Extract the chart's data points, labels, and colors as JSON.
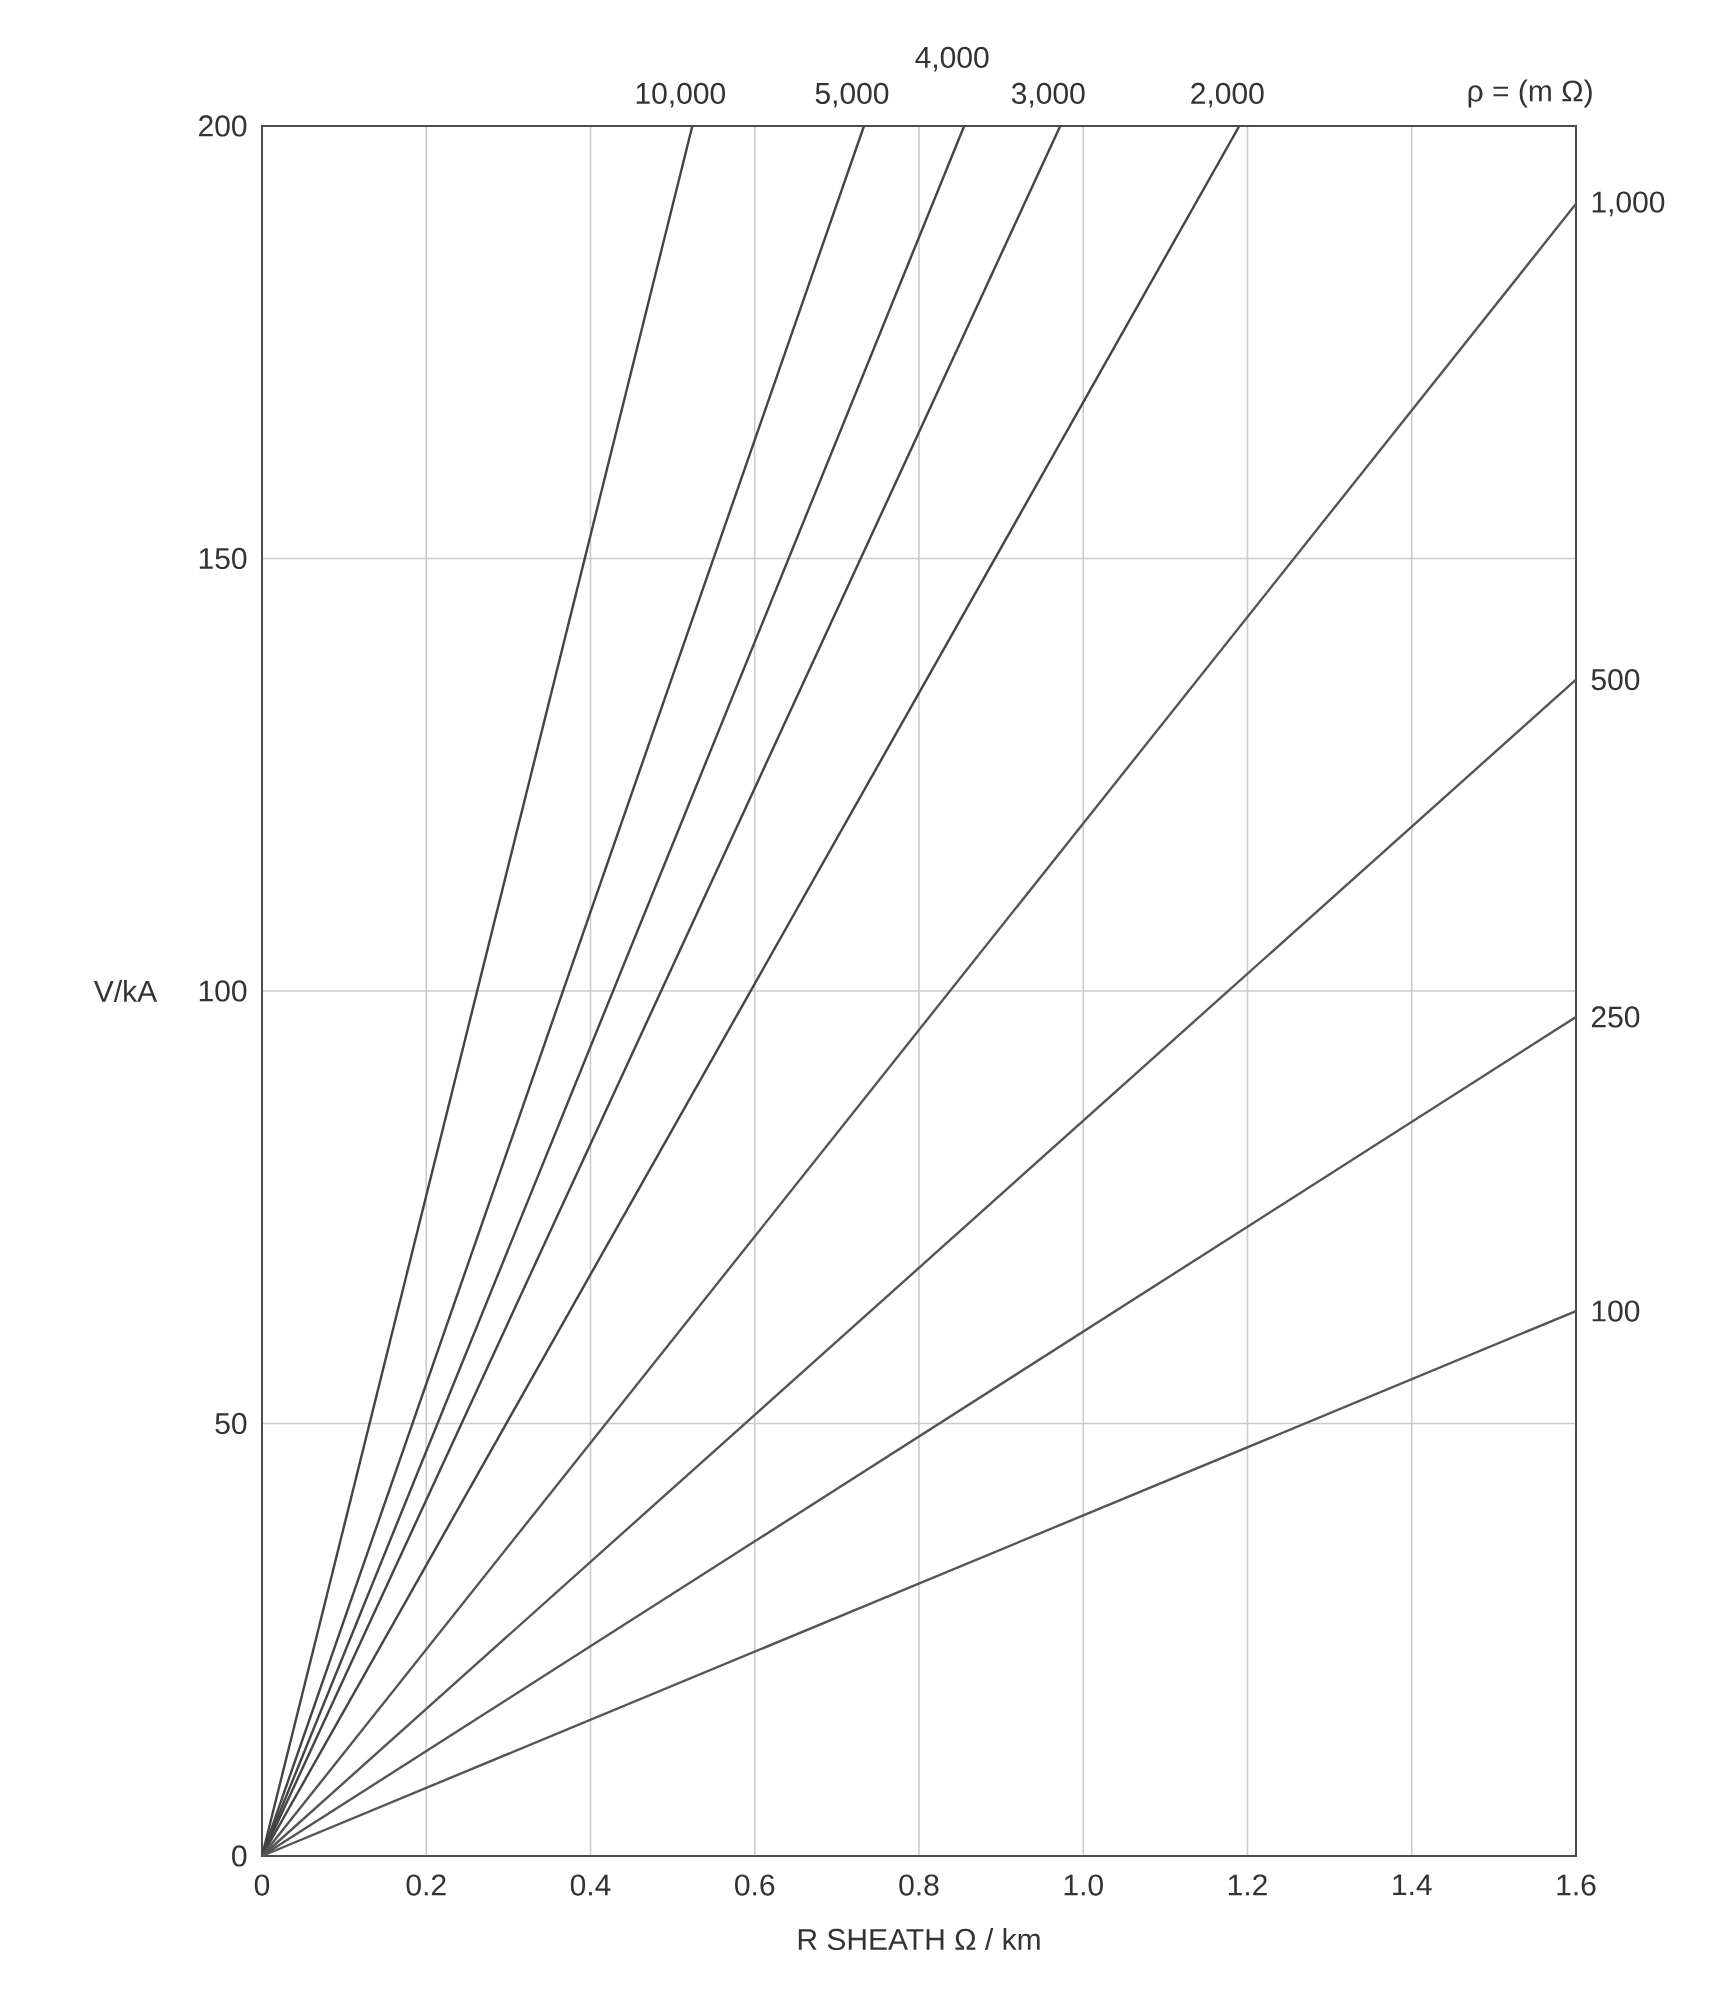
{
  "chart_data": {
    "type": "line",
    "xlabel": "R SHEATH Ω / km",
    "ylabel": "V/kA",
    "legend_title": "ρ = (m Ω)",
    "xlim": [
      0,
      1.6
    ],
    "ylim": [
      0,
      200
    ],
    "xticks": [
      0,
      0.2,
      0.4,
      0.6,
      0.8,
      {
        "value": 1.0,
        "label": "1.0"
      },
      1.2,
      1.4,
      1.6
    ],
    "yticks": [
      0,
      50,
      100,
      150,
      200
    ],
    "grid": true,
    "marker": "none",
    "line_style": "solid",
    "series": [
      {
        "name": "10,000",
        "color": "#444444",
        "x": [
          0,
          0.524
        ],
        "values": [
          0,
          200
        ]
      },
      {
        "name": "5,000",
        "color": "#444444",
        "x": [
          0,
          0.733
        ],
        "values": [
          0,
          200
        ]
      },
      {
        "name": "4,000",
        "color": "#444444",
        "x": [
          0,
          0.855
        ],
        "values": [
          0,
          200
        ]
      },
      {
        "name": "3,000",
        "color": "#444444",
        "x": [
          0,
          0.972
        ],
        "values": [
          0,
          200
        ]
      },
      {
        "name": "2,000",
        "color": "#444444",
        "x": [
          0,
          1.19
        ],
        "values": [
          0,
          200
        ]
      },
      {
        "name": "1,000",
        "color": "#555555",
        "x": [
          0,
          1.6
        ],
        "values": [
          0,
          191
        ]
      },
      {
        "name": "500",
        "color": "#555555",
        "x": [
          0,
          1.6
        ],
        "values": [
          0,
          136
        ]
      },
      {
        "name": "250",
        "color": "#555555",
        "x": [
          0,
          1.6
        ],
        "values": [
          0,
          97
        ]
      },
      {
        "name": "100",
        "color": "#555555",
        "x": [
          0,
          1.6
        ],
        "values": [
          0,
          63
        ]
      }
    ]
  }
}
